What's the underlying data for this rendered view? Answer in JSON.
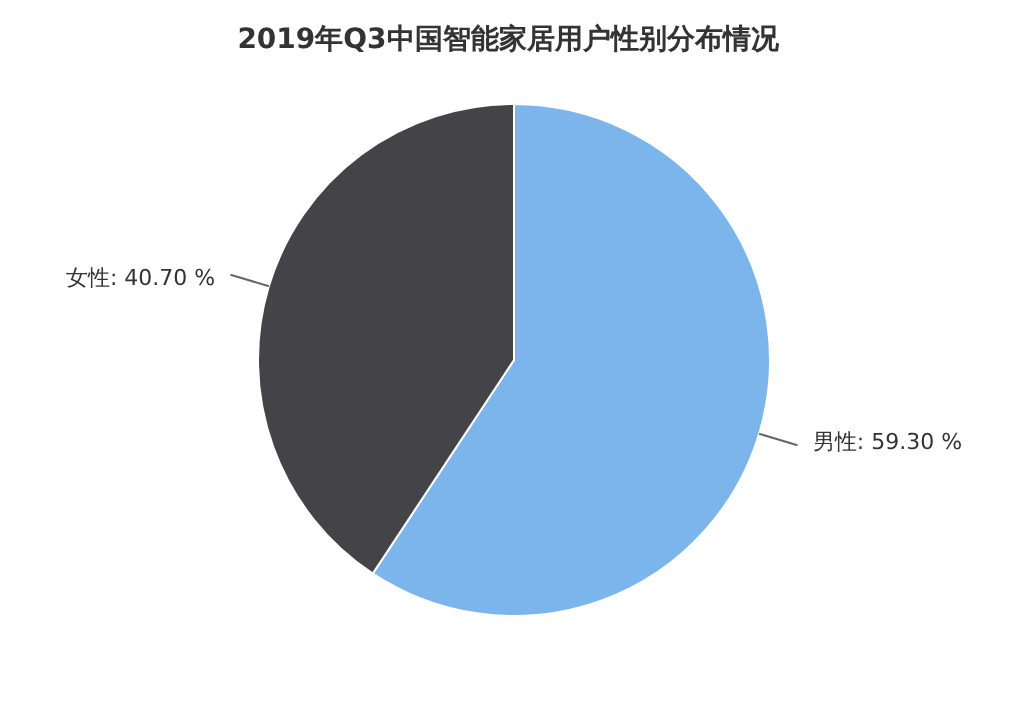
{
  "chart_data": {
    "type": "pie",
    "title": "2019年Q3中国智能家居用户性别分布情况",
    "categories": [
      "男性",
      "女性"
    ],
    "values": [
      59.3,
      40.7
    ],
    "colors": [
      "#7cb5ec",
      "#434348"
    ],
    "value_labels": [
      "59.30 %",
      "40.70 %"
    ],
    "legend": false
  }
}
